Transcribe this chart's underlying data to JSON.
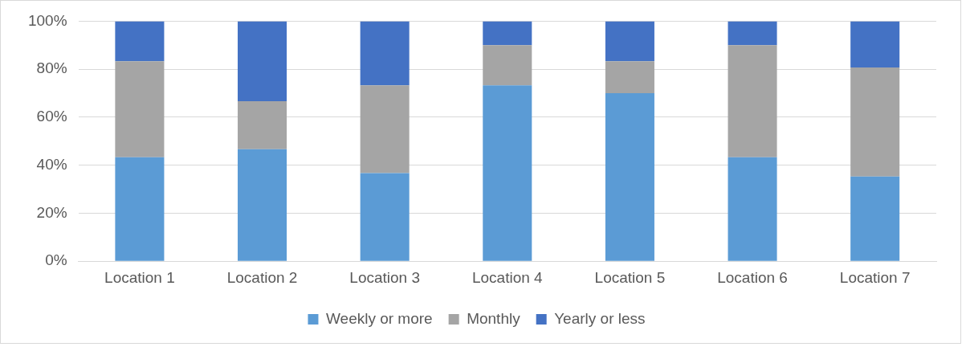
{
  "chart_data": {
    "type": "bar",
    "stacked": true,
    "categories": [
      "Location 1",
      "Location 2",
      "Location 3",
      "Location 4",
      "Location 5",
      "Location 6",
      "Location 7"
    ],
    "series": [
      {
        "name": "Weekly or more",
        "color": "#5b9bd5",
        "values": [
          43.3,
          46.7,
          36.7,
          73.3,
          70,
          43.3,
          35.3
        ]
      },
      {
        "name": "Monthly",
        "color": "#a5a5a5",
        "values": [
          40,
          20,
          36.6,
          16.7,
          13.3,
          46.7,
          45.4
        ]
      },
      {
        "name": "Yearly or less",
        "color": "#4472c4",
        "values": [
          16.7,
          33.3,
          26.7,
          10,
          16.7,
          10,
          19.3
        ]
      }
    ],
    "ylim": [
      0,
      100
    ],
    "yticks": [
      {
        "value": 0,
        "label": "0%"
      },
      {
        "value": 20,
        "label": "20%"
      },
      {
        "value": 40,
        "label": "40%"
      },
      {
        "value": 60,
        "label": "60%"
      },
      {
        "value": 80,
        "label": "80%"
      },
      {
        "value": 100,
        "label": "100%"
      }
    ],
    "grid": "y",
    "legend": "bottom"
  }
}
